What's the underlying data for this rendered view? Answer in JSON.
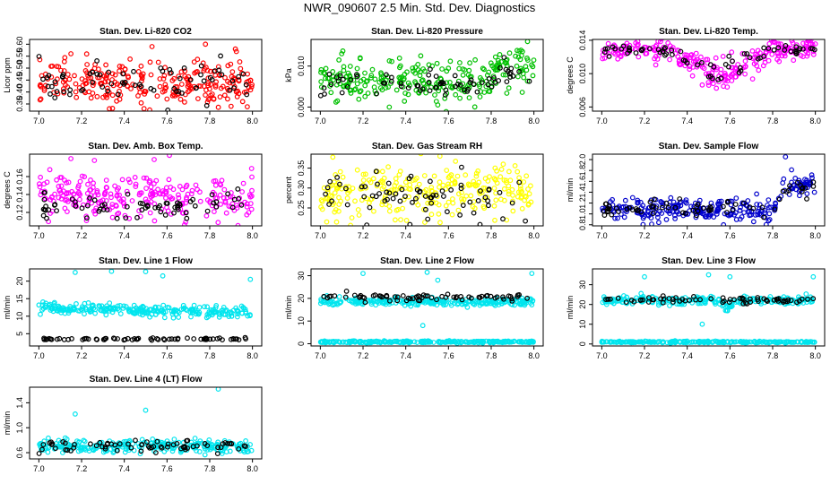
{
  "page": {
    "title": "NWR_090607  2.5 Min. Std. Dev. Diagnostics"
  },
  "chart_data": [
    {
      "type": "scatter",
      "title": "Stan. Dev. Li-820 CO2",
      "xlabel": "",
      "ylabel": "Licor ppm",
      "xlim": [
        7.0,
        8.0
      ],
      "ylim": [
        0.32,
        0.62
      ],
      "x_ticks": [
        "7.0",
        "7.2",
        "7.4",
        "7.6",
        "7.8",
        "8.0"
      ],
      "y_ticks": [
        "0.35",
        "0.40",
        "0.45",
        "0.50",
        "0.55",
        "0.60"
      ],
      "y_tick_values": [
        0.35,
        0.4,
        0.45,
        0.5,
        0.55,
        0.6
      ],
      "series": [
        {
          "color": "#ff0000",
          "band": [
            0.37,
            0.55
          ],
          "center": 0.44,
          "noise": 0.045,
          "outliers": [
            [
              7.53,
              0.59
            ],
            [
              7.78,
              0.6
            ],
            [
              7.92,
              0.58
            ],
            [
              7.33,
              0.33
            ],
            [
              7.15,
              0.56
            ]
          ]
        },
        {
          "color": "#000000",
          "center": 0.44,
          "noise": 0.04
        }
      ]
    },
    {
      "type": "scatter",
      "title": "Stan. Dev. Li-820 Pressure",
      "xlabel": "",
      "ylabel": "kPa",
      "xlim": [
        7.0,
        8.0
      ],
      "ylim": [
        -0.001,
        0.0165
      ],
      "x_ticks": [
        "7.0",
        "7.2",
        "7.4",
        "7.6",
        "7.8",
        "8.0"
      ],
      "y_ticks": [
        "0.000",
        "0.010"
      ],
      "y_tick_values": [
        0.0,
        0.01
      ],
      "series": [
        {
          "color": "#00c000",
          "center": 0.006,
          "noise": 0.0025,
          "rise": [
            7.78,
            0.004
          ],
          "outliers": [
            [
              7.47,
              0.0125
            ],
            [
              7.97,
              0.016
            ],
            [
              7.1,
              0.013
            ],
            [
              7.55,
              0.0005
            ]
          ]
        },
        {
          "color": "#000000",
          "center": 0.0055,
          "noise": 0.0015,
          "rise": [
            7.78,
            0.003
          ]
        }
      ]
    },
    {
      "type": "scatter",
      "title": "Stan. Dev. Li-820 Temp.",
      "xlabel": "",
      "ylabel": "degrees C",
      "xlim": [
        7.0,
        8.0
      ],
      "ylim": [
        0.0055,
        0.0141
      ],
      "x_ticks": [
        "7.0",
        "7.2",
        "7.4",
        "7.6",
        "7.8",
        "8.0"
      ],
      "y_ticks": [
        "0.006",
        "0.010",
        "0.014"
      ],
      "y_tick_values": [
        0.006,
        0.01,
        0.014
      ],
      "series": [
        {
          "color": "#ff00ff",
          "center": 0.0128,
          "noise": 0.0006,
          "dip": [
            7.3,
            7.8,
            0.0035
          ]
        },
        {
          "color": "#000000",
          "center": 0.0128,
          "noise": 0.0004,
          "dip": [
            7.3,
            7.8,
            0.003
          ]
        }
      ]
    },
    {
      "type": "scatter",
      "title": "Stan. Dev. Amb. Box Temp.",
      "xlabel": "",
      "ylabel": "degrees C",
      "xlim": [
        7.0,
        8.0
      ],
      "ylim": [
        0.105,
        0.185
      ],
      "x_ticks": [
        "7.0",
        "7.2",
        "7.4",
        "7.6",
        "7.8",
        "8.0"
      ],
      "y_ticks": [
        "0.12",
        "0.14",
        "0.16"
      ],
      "y_tick_values": [
        0.12,
        0.14,
        0.16
      ],
      "series": [
        {
          "color": "#ff00ff",
          "center": 0.138,
          "noise": 0.013,
          "outliers": [
            [
              7.15,
              0.18
            ],
            [
              7.26,
              0.178
            ],
            [
              7.54,
              0.179
            ]
          ]
        },
        {
          "color": "#000000",
          "center": 0.127,
          "noise": 0.008
        }
      ]
    },
    {
      "type": "scatter",
      "title": "Stan. Dev. Gas Stream RH",
      "xlabel": "",
      "ylabel": "percent",
      "xlim": [
        7.0,
        8.0
      ],
      "ylim": [
        0.205,
        0.385
      ],
      "x_ticks": [
        "7.0",
        "7.2",
        "7.4",
        "7.6",
        "7.8",
        "8.0"
      ],
      "y_ticks": [
        "0.25",
        "0.30",
        "0.35"
      ],
      "y_tick_values": [
        0.25,
        0.3,
        0.35
      ],
      "series": [
        {
          "color": "#ffff00",
          "center": 0.29,
          "noise": 0.035,
          "outliers": [
            [
              7.56,
              0.38
            ],
            [
              7.03,
              0.215
            ]
          ]
        },
        {
          "color": "#000000",
          "center": 0.28,
          "noise": 0.03
        }
      ]
    },
    {
      "type": "scatter",
      "title": "Stan. Dev. Sample Flow",
      "xlabel": "",
      "ylabel": "ml/min",
      "xlim": [
        7.0,
        8.0
      ],
      "ylim": [
        0.78,
        2.1
      ],
      "x_ticks": [
        "7.0",
        "7.2",
        "7.4",
        "7.6",
        "7.8",
        "8.0"
      ],
      "y_ticks": [
        "0.8",
        "1.0",
        "1.2",
        "1.4",
        "1.6",
        "1.8",
        "2.0"
      ],
      "y_tick_values": [
        0.8,
        1.0,
        1.2,
        1.4,
        1.6,
        1.8,
        2.0
      ],
      "series": [
        {
          "color": "#0000cc",
          "center": 1.07,
          "noise": 0.1,
          "rise": [
            7.8,
            0.45
          ],
          "outliers": [
            [
              7.86,
              2.05
            ],
            [
              7.57,
              0.8
            ]
          ]
        },
        {
          "color": "#000000",
          "center": 1.08,
          "noise": 0.07,
          "rise": [
            7.8,
            0.35
          ]
        }
      ]
    },
    {
      "type": "scatter",
      "title": "Stan. Dev. Line 1 Flow",
      "xlabel": "",
      "ylabel": "ml/min",
      "xlim": [
        7.0,
        8.0
      ],
      "ylim": [
        1.5,
        23.5
      ],
      "x_ticks": [
        "7.0",
        "7.2",
        "7.4",
        "7.6",
        "7.8",
        "8.0"
      ],
      "y_ticks": [
        "5",
        "10",
        "15",
        "20"
      ],
      "y_tick_values": [
        5,
        10,
        15,
        20
      ],
      "series": [
        {
          "color": "#00e5ee",
          "center": 12.6,
          "noise": 0.8,
          "trend": -1.8,
          "outliers": [
            [
              7.17,
              22.5
            ],
            [
              7.34,
              22.8
            ],
            [
              7.5,
              22.7
            ],
            [
              7.58,
              21.5
            ],
            [
              7.99,
              20.5
            ]
          ]
        },
        {
          "color": "#000000",
          "center": 3.5,
          "noise": 0.15
        }
      ]
    },
    {
      "type": "scatter",
      "title": "Stan. Dev. Line 2 Flow",
      "xlabel": "",
      "ylabel": "ml/min",
      "xlim": [
        7.0,
        8.0
      ],
      "ylim": [
        -1,
        33
      ],
      "x_ticks": [
        "7.0",
        "7.2",
        "7.4",
        "7.6",
        "7.8",
        "8.0"
      ],
      "y_ticks": [
        "0",
        "10",
        "20",
        "30"
      ],
      "y_tick_values": [
        0,
        10,
        20,
        30
      ],
      "series": [
        {
          "color": "#00e5ee",
          "center": 18.5,
          "noise": 0.9,
          "outliers": [
            [
              7.2,
              31
            ],
            [
              7.5,
              31.5
            ],
            [
              7.55,
              28
            ],
            [
              7.48,
              8
            ],
            [
              7.99,
              31
            ]
          ]
        },
        {
          "color": "#00e5ee",
          "center": 0.8,
          "noise": 0.2
        },
        {
          "color": "#000000",
          "center": 20.5,
          "noise": 0.8
        }
      ]
    },
    {
      "type": "scatter",
      "title": "Stan. Dev. Line 3 Flow",
      "xlabel": "",
      "ylabel": "ml/min",
      "xlim": [
        7.0,
        8.0
      ],
      "ylim": [
        -1,
        38
      ],
      "x_ticks": [
        "7.0",
        "7.2",
        "7.4",
        "7.6",
        "7.8",
        "8.0"
      ],
      "y_ticks": [
        "0",
        "10",
        "20",
        "30"
      ],
      "y_tick_values": [
        0,
        10,
        20,
        30
      ],
      "series": [
        {
          "color": "#00e5ee",
          "center": 22.0,
          "noise": 1.0,
          "dip": [
            7.55,
            7.62,
            5
          ],
          "outliers": [
            [
              7.2,
              34
            ],
            [
              7.5,
              35
            ],
            [
              7.6,
              34
            ],
            [
              7.99,
              34
            ],
            [
              7.47,
              10
            ]
          ]
        },
        {
          "color": "#00e5ee",
          "center": 1.0,
          "noise": 0.2
        },
        {
          "color": "#000000",
          "center": 22.5,
          "noise": 0.9
        }
      ]
    },
    {
      "type": "scatter",
      "title": "Stan. Dev. Line 4 (LT) Flow",
      "xlabel": "",
      "ylabel": "ml/min",
      "xlim": [
        7.0,
        8.0
      ],
      "ylim": [
        0.5,
        1.65
      ],
      "x_ticks": [
        "7.0",
        "7.2",
        "7.4",
        "7.6",
        "7.8",
        "8.0"
      ],
      "y_ticks": [
        "0.6",
        "1.0",
        "1.4"
      ],
      "y_tick_values": [
        0.6,
        1.0,
        1.4
      ],
      "series": [
        {
          "color": "#00e5ee",
          "center": 0.7,
          "noise": 0.05,
          "outliers": [
            [
              7.17,
              1.22
            ],
            [
              7.5,
              1.28
            ],
            [
              7.84,
              1.62
            ]
          ]
        },
        {
          "color": "#000000",
          "center": 0.7,
          "noise": 0.05
        }
      ]
    }
  ]
}
